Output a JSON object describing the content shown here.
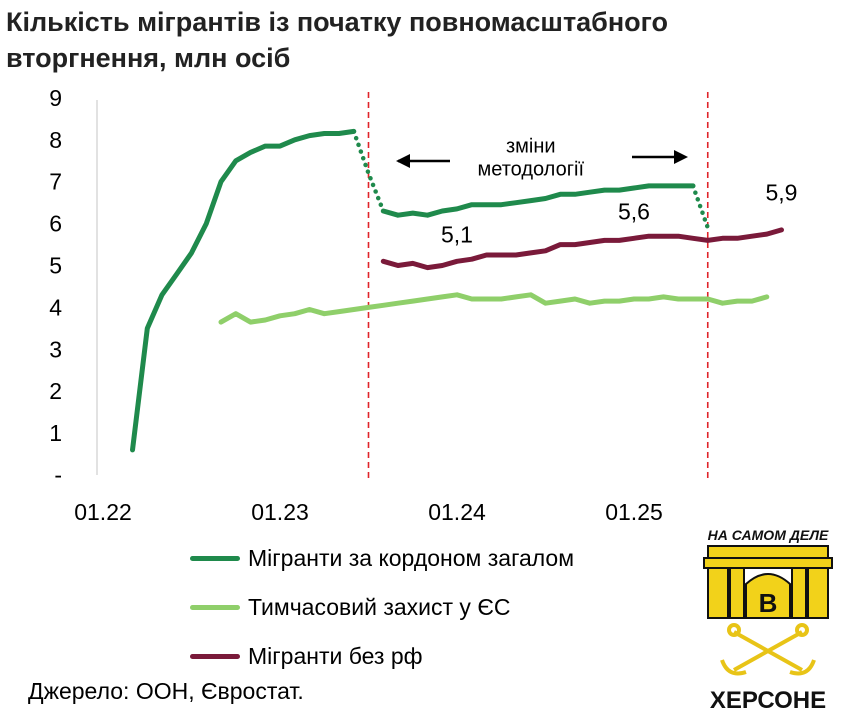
{
  "title": "Кількість мігрантів із початку повномасштабного вторгнення, млн осіб",
  "source": "Джерело: ООН, Євростат.",
  "logo": {
    "top_text": "НА САМОМ ДЕЛЕ",
    "letter": "В",
    "bottom_text": "ХЕРСОНЕ"
  },
  "chart_data": {
    "type": "line",
    "title": "Кількість мігрантів із початку повномасштабного вторгнення, млн осіб",
    "xlabel": "",
    "ylabel": "",
    "ylim": [
      0,
      9
    ],
    "y_ticks": [
      "-",
      "1",
      "2",
      "3",
      "4",
      "5",
      "6",
      "7",
      "8",
      "9"
    ],
    "x_ticks": [
      {
        "label": "01.22",
        "x": "2022-01"
      },
      {
        "label": "01.23",
        "x": "2023-01"
      },
      {
        "label": "01.24",
        "x": "2024-01"
      },
      {
        "label": "01.25",
        "x": "2025-01"
      }
    ],
    "grid": false,
    "legend_position": "bottom",
    "series": [
      {
        "name": "Мігранти за кордоном загалом",
        "color": "#1f8a4c",
        "segments": [
          {
            "style": "solid",
            "x": [
              "2022-03",
              "2022-04",
              "2022-05",
              "2022-06",
              "2022-07",
              "2022-08",
              "2022-09",
              "2022-10",
              "2022-11",
              "2022-12",
              "2023-01",
              "2023-02",
              "2023-03",
              "2023-04",
              "2023-05",
              "2023-06"
            ],
            "y": [
              0.6,
              3.5,
              4.3,
              4.8,
              5.3,
              6.0,
              7.0,
              7.5,
              7.7,
              7.85,
              7.85,
              8.0,
              8.1,
              8.15,
              8.15,
              8.2
            ]
          },
          {
            "style": "dotted",
            "x": [
              "2023-06",
              "2023-07",
              "2023-08"
            ],
            "y": [
              8.2,
              7.2,
              6.3
            ]
          },
          {
            "style": "solid",
            "x": [
              "2023-08",
              "2023-09",
              "2023-10",
              "2023-11",
              "2023-12",
              "2024-01",
              "2024-02",
              "2024-03",
              "2024-04",
              "2024-05",
              "2024-06",
              "2024-07",
              "2024-08",
              "2024-09",
              "2024-10",
              "2024-11",
              "2024-12",
              "2025-01",
              "2025-02",
              "2025-03",
              "2025-04",
              "2025-05"
            ],
            "y": [
              6.3,
              6.2,
              6.25,
              6.2,
              6.3,
              6.35,
              6.45,
              6.45,
              6.45,
              6.5,
              6.55,
              6.6,
              6.7,
              6.7,
              6.75,
              6.8,
              6.8,
              6.85,
              6.9,
              6.9,
              6.9,
              6.9
            ]
          },
          {
            "style": "dotted",
            "x": [
              "2025-05",
              "2025-06"
            ],
            "y": [
              6.9,
              5.9
            ]
          }
        ]
      },
      {
        "name": "Тимчасовий захист у ЄС",
        "color": "#8fcf6a",
        "segments": [
          {
            "style": "solid",
            "x": [
              "2022-09",
              "2022-10",
              "2022-11",
              "2022-12",
              "2023-01",
              "2023-02",
              "2023-03",
              "2023-04",
              "2023-05",
              "2023-06",
              "2023-07",
              "2023-08",
              "2023-09",
              "2023-10",
              "2023-11",
              "2023-12",
              "2024-01",
              "2024-02",
              "2024-03",
              "2024-04",
              "2024-05",
              "2024-06",
              "2024-07",
              "2024-08",
              "2024-09",
              "2024-10",
              "2024-11",
              "2024-12",
              "2025-01",
              "2025-02",
              "2025-03",
              "2025-04",
              "2025-05",
              "2025-06",
              "2025-07",
              "2025-08",
              "2025-09",
              "2025-10"
            ],
            "y": [
              3.65,
              3.85,
              3.65,
              3.7,
              3.8,
              3.85,
              3.95,
              3.85,
              3.9,
              3.95,
              4.0,
              4.05,
              4.1,
              4.15,
              4.2,
              4.25,
              4.3,
              4.2,
              4.2,
              4.2,
              4.25,
              4.3,
              4.1,
              4.15,
              4.2,
              4.1,
              4.15,
              4.15,
              4.2,
              4.2,
              4.25,
              4.2,
              4.2,
              4.2,
              4.1,
              4.15,
              4.15,
              4.25
            ]
          }
        ]
      },
      {
        "name": "Мігранти без рф",
        "color": "#7a1a3a",
        "segments": [
          {
            "style": "solid",
            "x": [
              "2023-08",
              "2023-09",
              "2023-10",
              "2023-11",
              "2023-12",
              "2024-01",
              "2024-02",
              "2024-03",
              "2024-04",
              "2024-05",
              "2024-06",
              "2024-07",
              "2024-08",
              "2024-09",
              "2024-10",
              "2024-11",
              "2024-12",
              "2025-01",
              "2025-02",
              "2025-03",
              "2025-04",
              "2025-05",
              "2025-06",
              "2025-07",
              "2025-08",
              "2025-09",
              "2025-10",
              "2025-11"
            ],
            "y": [
              5.1,
              5.0,
              5.05,
              4.95,
              5.0,
              5.1,
              5.15,
              5.25,
              5.25,
              5.25,
              5.3,
              5.35,
              5.5,
              5.5,
              5.55,
              5.6,
              5.6,
              5.65,
              5.7,
              5.7,
              5.7,
              5.65,
              5.6,
              5.65,
              5.65,
              5.7,
              5.75,
              5.85
            ]
          }
        ]
      }
    ],
    "vlines": [
      {
        "x": "2023-07",
        "color": "#e0242a",
        "style": "dashed"
      },
      {
        "x": "2025-06",
        "color": "#e0242a",
        "style": "dashed"
      }
    ],
    "annotations": [
      {
        "text": "5,1",
        "x": "2024-01",
        "y": 5.55
      },
      {
        "text": "5,6",
        "x": "2025-01",
        "y": 6.1
      },
      {
        "text": "5,9",
        "x": "2025-11",
        "y": 6.55
      },
      {
        "text": "зміни",
        "x": "2024-06",
        "y": 7.7
      },
      {
        "text": "методології",
        "x": "2024-06",
        "y": 7.15
      }
    ]
  }
}
